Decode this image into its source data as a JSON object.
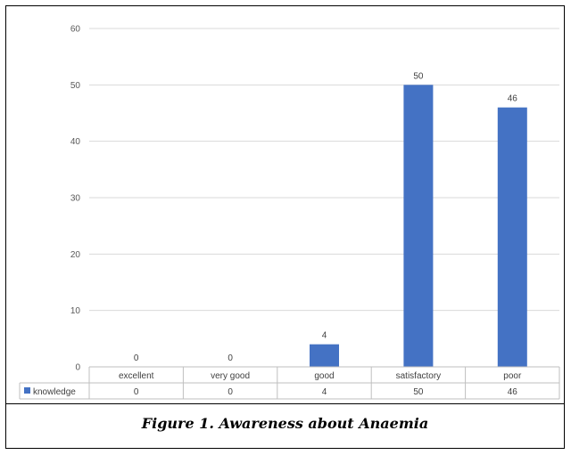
{
  "chart_data": {
    "type": "bar",
    "categories": [
      "excellent",
      "very good",
      "good",
      "satisfactory",
      "poor"
    ],
    "series": [
      {
        "name": "knowledge",
        "values": [
          0,
          0,
          4,
          50,
          46
        ],
        "color": "#4472C4"
      }
    ],
    "ylim": [
      0,
      60
    ],
    "yticks": [
      0,
      10,
      20,
      30,
      40,
      50,
      60
    ],
    "grid": true,
    "data_table": true,
    "data_labels": [
      "0",
      "0",
      "4",
      "50",
      "46"
    ]
  },
  "caption": "Figure 1. Awareness about Anaemia",
  "legend_key_color": "#4472C4"
}
